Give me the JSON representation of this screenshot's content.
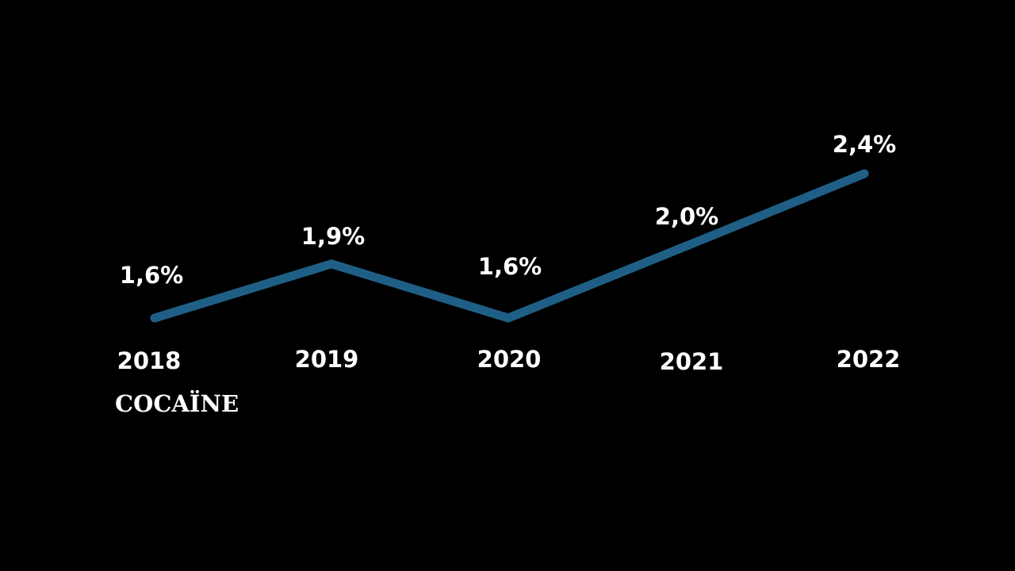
{
  "chart_data": {
    "type": "line",
    "title": "",
    "caption": "COCAÏNE",
    "categories": [
      "2018",
      "2019",
      "2020",
      "2021",
      "2022"
    ],
    "series": [
      {
        "values": [
          1.6,
          1.9,
          1.6,
          2.0,
          2.4
        ],
        "value_labels": [
          "1,6%",
          "1,9%",
          "1,6%",
          "2,0%",
          "2,4%"
        ],
        "color": "#1f5f86"
      }
    ],
    "xlabel": "",
    "ylabel": "",
    "ylim": [
      1.6,
      2.4
    ],
    "grid": false,
    "legend": "none",
    "background": "#000000",
    "text_color": "#ffffff"
  }
}
